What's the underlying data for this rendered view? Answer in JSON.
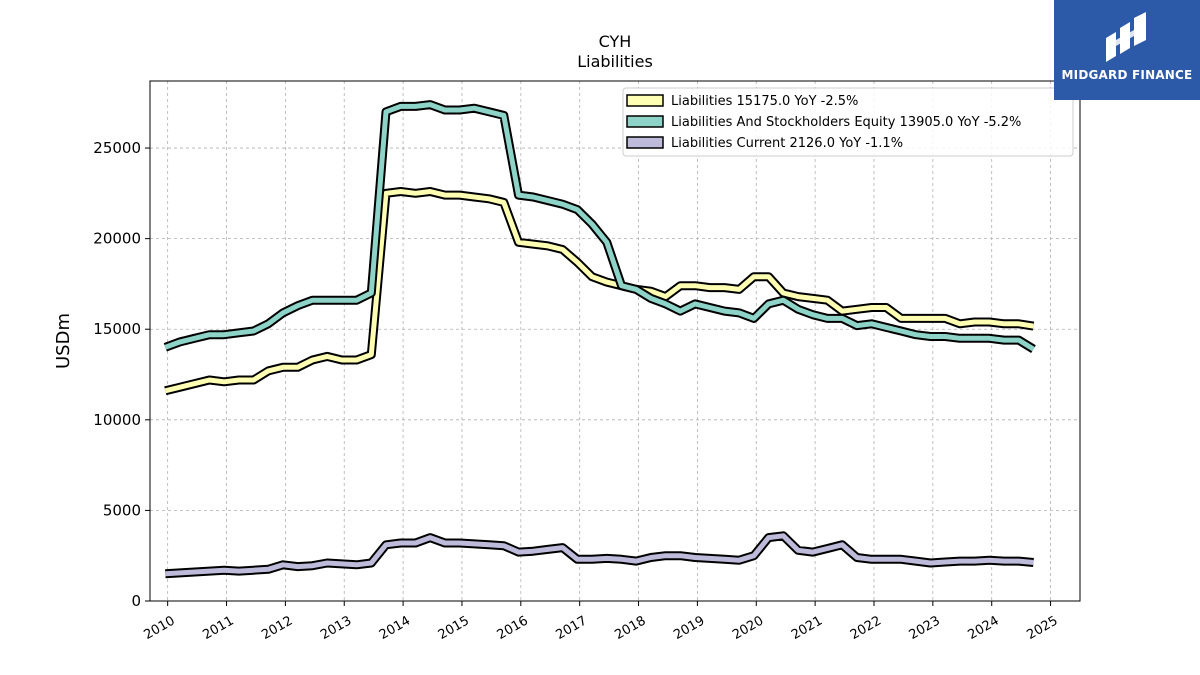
{
  "brand": {
    "name": "MIDGARD FINANCE",
    "bg_color": "#2c5aa8",
    "icon": "midgard-logo-icon"
  },
  "chart_data": {
    "type": "line",
    "title": "CYH",
    "subtitle": "Liabilities",
    "xlabel": "",
    "ylabel": "USDm",
    "xlim": [
      2009.7,
      2025.5
    ],
    "ylim": [
      0,
      28700
    ],
    "x_ticks": [
      "2010",
      "2011",
      "2012",
      "2013",
      "2014",
      "2015",
      "2016",
      "2017",
      "2018",
      "2019",
      "2020",
      "2021",
      "2022",
      "2023",
      "2024",
      "2025"
    ],
    "y_ticks": [
      "0",
      "5000",
      "10000",
      "15000",
      "20000",
      "25000"
    ],
    "grid": true,
    "legend_position": "top-right",
    "x": [
      2009.96,
      2010.21,
      2010.46,
      2010.71,
      2010.96,
      2011.21,
      2011.46,
      2011.71,
      2011.96,
      2012.21,
      2012.46,
      2012.71,
      2012.96,
      2013.21,
      2013.46,
      2013.71,
      2013.96,
      2014.21,
      2014.46,
      2014.71,
      2014.96,
      2015.21,
      2015.46,
      2015.71,
      2015.96,
      2016.21,
      2016.46,
      2016.71,
      2016.96,
      2017.21,
      2017.46,
      2017.71,
      2017.96,
      2018.21,
      2018.46,
      2018.71,
      2018.96,
      2019.21,
      2019.46,
      2019.71,
      2019.96,
      2020.21,
      2020.46,
      2020.71,
      2020.96,
      2021.21,
      2021.46,
      2021.71,
      2021.96,
      2022.21,
      2022.46,
      2022.71,
      2022.96,
      2023.21,
      2023.46,
      2023.71,
      2023.96,
      2024.21,
      2024.46,
      2024.71
    ],
    "series": [
      {
        "name": "Liabilities  15175.0 YoY -2.5%",
        "color": "#ffffb3",
        "values": [
          11600,
          11800,
          12000,
          12200,
          12100,
          12200,
          12200,
          12700,
          12900,
          12900,
          13300,
          13500,
          13300,
          13300,
          13600,
          22500,
          22600,
          22500,
          22600,
          22400,
          22400,
          22300,
          22200,
          22000,
          19800,
          19700,
          19600,
          19400,
          18700,
          17900,
          17600,
          17400,
          17200,
          17100,
          16800,
          17400,
          17400,
          17300,
          17300,
          17200,
          17900,
          17900,
          17000,
          16800,
          16700,
          16600,
          16000,
          16100,
          16200,
          16200,
          15600,
          15600,
          15600,
          15600,
          15300,
          15400,
          15400,
          15300,
          15300,
          15175
        ]
      },
      {
        "name": "Liabilities And Stockholders Equity  13905.0 YoY -5.2%",
        "color": "#8dd3c7",
        "values": [
          14000,
          14300,
          14500,
          14700,
          14700,
          14800,
          14900,
          15300,
          15900,
          16300,
          16600,
          16600,
          16600,
          16600,
          17000,
          27000,
          27300,
          27300,
          27400,
          27100,
          27100,
          27200,
          27000,
          26800,
          22400,
          22300,
          22100,
          21900,
          21600,
          20800,
          19800,
          17400,
          17200,
          16700,
          16400,
          16000,
          16400,
          16200,
          16000,
          15900,
          15600,
          16400,
          16600,
          16100,
          15800,
          15600,
          15600,
          15200,
          15300,
          15100,
          14900,
          14700,
          14600,
          14600,
          14500,
          14500,
          14500,
          14400,
          14400,
          13905
        ]
      },
      {
        "name": "Liabilities Current  2126.0 YoY -1.1%",
        "color": "#bebada",
        "values": [
          1500,
          1550,
          1600,
          1650,
          1700,
          1650,
          1700,
          1750,
          2000,
          1900,
          1950,
          2100,
          2050,
          2000,
          2100,
          3100,
          3200,
          3200,
          3500,
          3200,
          3200,
          3150,
          3100,
          3050,
          2700,
          2750,
          2850,
          2950,
          2300,
          2300,
          2350,
          2300,
          2200,
          2400,
          2500,
          2500,
          2400,
          2350,
          2300,
          2250,
          2500,
          3500,
          3600,
          2800,
          2700,
          2900,
          3100,
          2400,
          2300,
          2300,
          2300,
          2200,
          2100,
          2150,
          2200,
          2200,
          2250,
          2200,
          2200,
          2126
        ]
      }
    ]
  }
}
